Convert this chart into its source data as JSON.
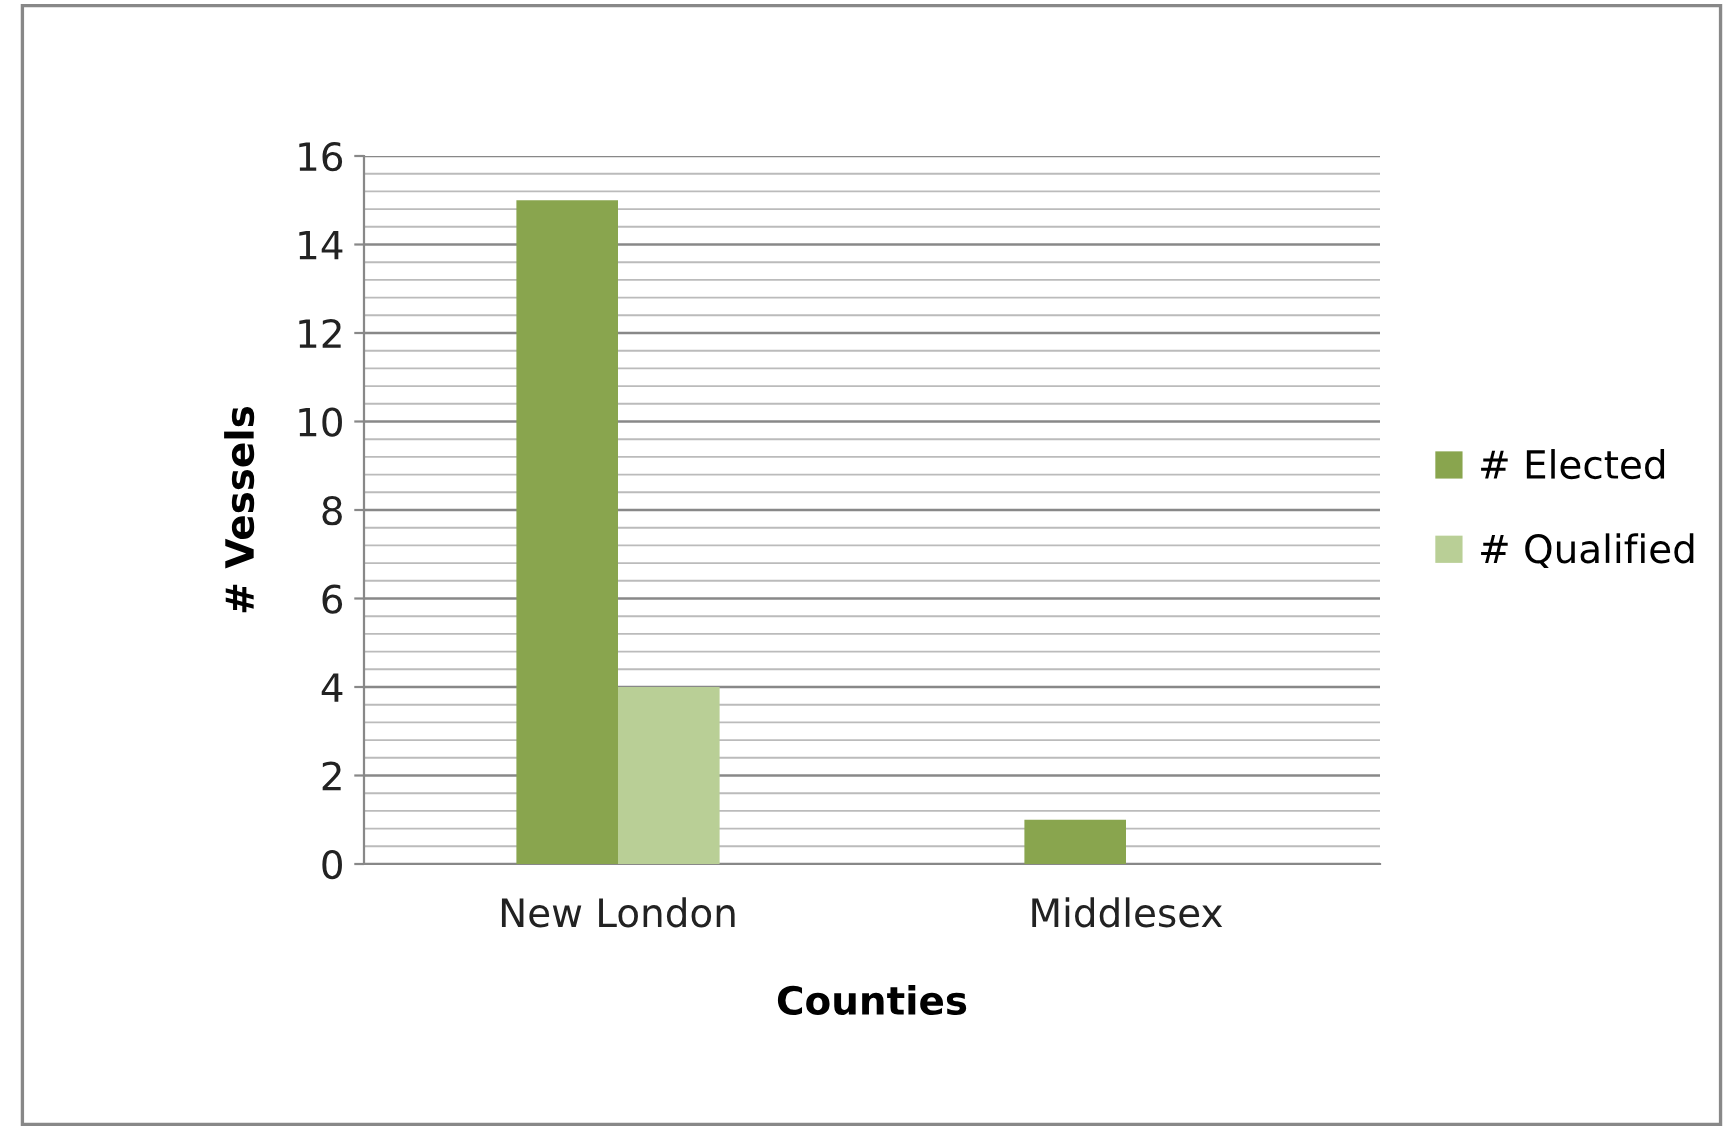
{
  "chart_data": {
    "type": "bar",
    "xlabel": "Counties",
    "ylabel": "# Vessels",
    "categories": [
      "New London",
      "Middlesex"
    ],
    "series": [
      {
        "name": "# Elected",
        "color": "#89a54e",
        "values": [
          15,
          1
        ]
      },
      {
        "name": "# Qualified",
        "color": "#b9cf96",
        "values": [
          4,
          0
        ]
      }
    ],
    "ylim": [
      0,
      16
    ],
    "yticks": [
      0,
      2,
      4,
      6,
      8,
      10,
      12,
      14,
      16
    ],
    "grid": "y",
    "legend": "right"
  }
}
